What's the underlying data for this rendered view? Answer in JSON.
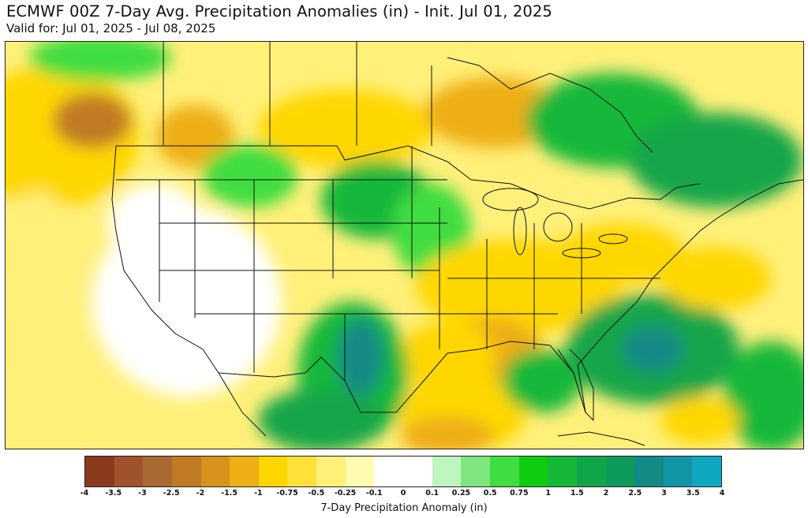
{
  "header": {
    "title": "ECMWF 00Z 7-Day Avg. Precipitation Anomalies (in) - Init. Jul 01, 2025",
    "subtitle": "Valid for: Jul 01, 2025 - Jul 08, 2025"
  },
  "colorbar": {
    "label": "7-Day Precipitation Anomaly (in)",
    "ticks": [
      "-4",
      "-3.5",
      "-3",
      "-2.5",
      "-2",
      "-1.5",
      "-1",
      "-0.75",
      "-0.5",
      "-0.25",
      "-0.1",
      "0",
      "0.1",
      "0.25",
      "0.5",
      "0.75",
      "1",
      "1.5",
      "2",
      "2.5",
      "3",
      "3.5",
      "4"
    ],
    "colors": [
      "#8b3a1e",
      "#a0522d",
      "#a86a30",
      "#c07a24",
      "#d9921c",
      "#eeae14",
      "#ffd700",
      "#ffe13a",
      "#fff07a",
      "#fffbb0",
      "#ffffff",
      "#ffffff",
      "#bff5bf",
      "#7fe57f",
      "#40dd40",
      "#10cc10",
      "#16b83a",
      "#12a64a",
      "#0e9a5a",
      "#138a86",
      "#1296a6",
      "#10a8c0"
    ]
  },
  "map_colors": {
    "dry_strong": "#c07a24",
    "dry_moderate": "#eeae14",
    "dry_light": "#ffd700",
    "dry_faint": "#fff07a",
    "wet_light": "#7fe57f",
    "wet_moderate": "#16b83a",
    "wet_strong": "#12a64a",
    "wet_heavy": "#138a86",
    "land_neutral": "#ffffff",
    "boundary": "#111111"
  }
}
